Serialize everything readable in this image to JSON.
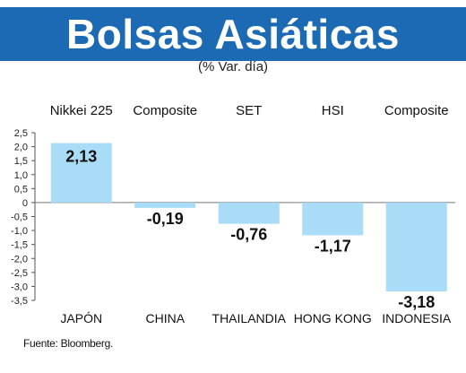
{
  "title": "Bolsas Asiáticas",
  "subtitle": "(% Var. día)",
  "source": "Fuente: Bloomberg.",
  "colors": {
    "bar": "#a9dcf6",
    "header": "#1b6ab3",
    "axis": "#555555"
  },
  "chart_data": {
    "type": "bar",
    "title": "Bolsas Asiáticas",
    "subtitle": "(% Var. día)",
    "index_labels": [
      "Nikkei 225",
      "Composite",
      "SET",
      "HSI",
      "Composite"
    ],
    "categories": [
      "JAPÓN",
      "CHINA",
      "THAILANDIA",
      "HONG KONG",
      "INDONESIA"
    ],
    "values": [
      2.13,
      -0.19,
      -0.76,
      -1.17,
      -3.18
    ],
    "value_labels": [
      "2,13",
      "-0,19",
      "-0,76",
      "-1,17",
      "-3,18"
    ],
    "ylim": [
      -3.5,
      2.5
    ],
    "yticks": [
      2.5,
      2.0,
      1.5,
      1.0,
      0.5,
      0,
      -0.5,
      -1.0,
      -1.5,
      -2.0,
      -2.5,
      -3.0,
      -3.5
    ],
    "ytick_labels": [
      "2,5",
      "2,0",
      "1,5",
      "1,0",
      "0,5",
      "0",
      "-0,5",
      "-1,0",
      "-1,5",
      "-2,0",
      "-2,5",
      "-3,0",
      "-3,5"
    ],
    "grid": false,
    "legend": "none"
  }
}
